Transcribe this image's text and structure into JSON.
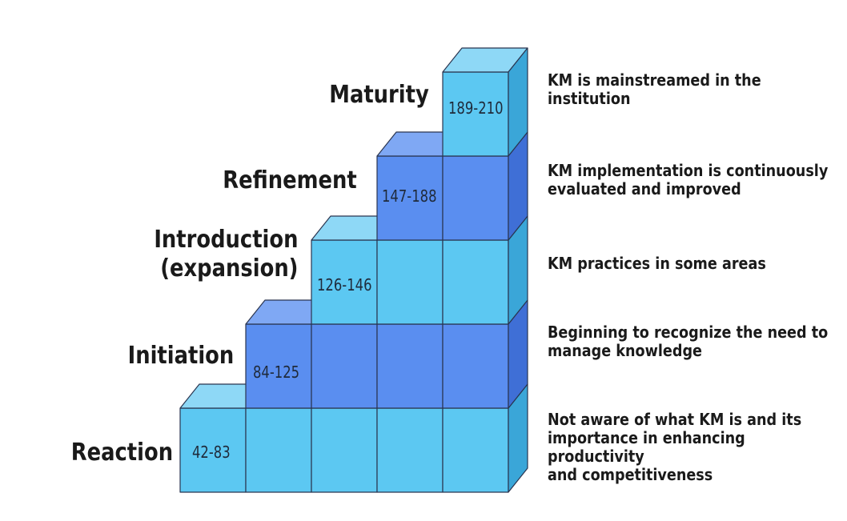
{
  "levels": [
    {
      "name": "Reaction",
      "range": "42-83",
      "description": "Not aware of what KM is and its\nimportance in enhancing\nproductivity\nand competitiveness"
    },
    {
      "name": "Initiation",
      "range": "84-125",
      "description": "Beginning to recognize the need to\nmanage knowledge"
    },
    {
      "name": "Introduction\n(expansion)",
      "range": "126-146",
      "description": "KM practices in some areas"
    },
    {
      "name": "Refinement",
      "range": "147-188",
      "description": "KM implementation is continuously\nevaluated and improved"
    },
    {
      "name": "Maturity",
      "range": "189-210",
      "description": "KM is mainstreamed in the\ninstitution"
    }
  ],
  "colors": {
    "light_front": "#5cc8f2",
    "light_top": "#8ed8f6",
    "light_side": "#3aa6d8",
    "dark_front": "#5a8ef0",
    "dark_top": "#7fa8f4",
    "dark_side": "#3f6fd6",
    "edge": "#2a3550"
  }
}
